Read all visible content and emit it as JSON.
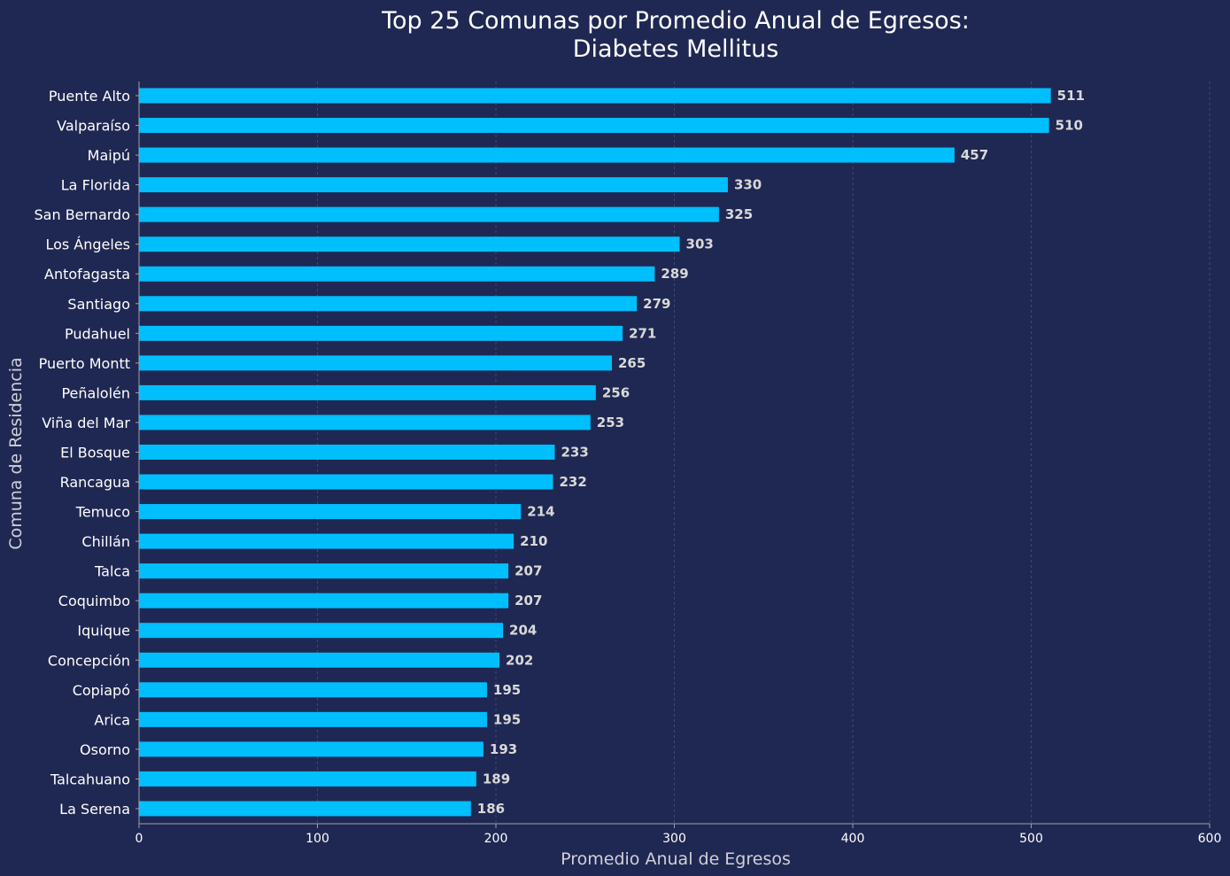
{
  "colors": {
    "background": "#1f2852",
    "bar": "#00bfff",
    "axis": "#9aa0b0",
    "grid": "#4a5278",
    "value_label": "#d9d9d9",
    "text": "#ffffff"
  },
  "chart_data": {
    "type": "bar",
    "orientation": "horizontal",
    "title_line1": "Top 25 Comunas por Promedio Anual de Egresos:",
    "title_line2": "Diabetes Mellitus",
    "xlabel": "Promedio Anual de Egresos",
    "ylabel": "Comuna de Residencia",
    "xlim": [
      0,
      600
    ],
    "xticks": [
      0,
      100,
      200,
      300,
      400,
      500,
      600
    ],
    "grid": "x-dashed",
    "categories": [
      "Puente Alto",
      "Valparaíso",
      "Maipú",
      "La Florida",
      "San Bernardo",
      "Los Ángeles",
      "Antofagasta",
      "Santiago",
      "Pudahuel",
      "Puerto Montt",
      "Peñalolén",
      "Viña del Mar",
      "El Bosque",
      "Rancagua",
      "Temuco",
      "Chillán",
      "Talca",
      "Coquimbo",
      "Iquique",
      "Concepción",
      "Copiapó",
      "Arica",
      "Osorno",
      "Talcahuano",
      "La Serena"
    ],
    "values": [
      511,
      510,
      457,
      330,
      325,
      303,
      289,
      279,
      271,
      265,
      256,
      253,
      233,
      232,
      214,
      210,
      207,
      207,
      204,
      202,
      195,
      195,
      193,
      189,
      186
    ],
    "value_labels": [
      "511",
      "510",
      "457",
      "330",
      "325",
      "303",
      "289",
      "279",
      "271",
      "265",
      "256",
      "253",
      "233",
      "232",
      "214",
      "210",
      "207",
      "207",
      "204",
      "202",
      "195",
      "195",
      "193",
      "189",
      "186"
    ]
  }
}
